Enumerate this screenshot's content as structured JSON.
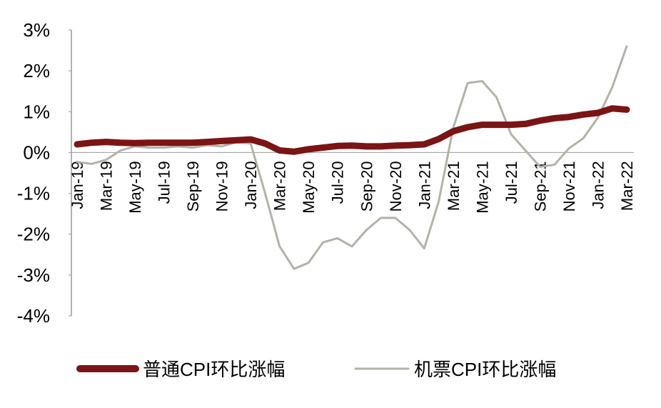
{
  "chart_data": {
    "type": "line",
    "categories": [
      "Jan-19",
      null,
      "Mar-19",
      null,
      "May-19",
      null,
      "Jul-19",
      null,
      "Sep-19",
      null,
      "Nov-19",
      null,
      "Jan-20",
      null,
      "Mar-20",
      null,
      "May-20",
      null,
      "Jul-20",
      null,
      "Sep-20",
      null,
      "Nov-20",
      null,
      "Jan-21",
      null,
      "Mar-21",
      null,
      "May-21",
      null,
      "Jul-21",
      null,
      "Sep-21",
      null,
      "Nov-21",
      null,
      "Jan-22",
      null,
      "Mar-22"
    ],
    "series": [
      {
        "name": "普通CPI环比涨幅",
        "color": "#7b1414",
        "values": [
          0.2,
          0.24,
          0.26,
          0.24,
          0.23,
          0.24,
          0.24,
          0.24,
          0.24,
          0.26,
          0.28,
          0.3,
          0.32,
          0.22,
          0.05,
          0.02,
          0.08,
          0.12,
          0.16,
          0.17,
          0.15,
          0.15,
          0.17,
          0.18,
          0.2,
          0.33,
          0.52,
          0.62,
          0.68,
          0.68,
          0.68,
          0.7,
          0.78,
          0.84,
          0.87,
          0.93,
          0.97,
          1.08,
          1.05
        ]
      },
      {
        "name": "机票CPI环比涨幅",
        "color": "#b4b2a8",
        "values": [
          -0.23,
          -0.28,
          -0.18,
          0.05,
          0.15,
          0.12,
          0.12,
          0.15,
          0.12,
          0.18,
          0.15,
          0.25,
          0.22,
          -1.0,
          -2.3,
          -2.85,
          -2.7,
          -2.2,
          -2.1,
          -2.3,
          -1.9,
          -1.6,
          -1.6,
          -1.9,
          -2.35,
          -1.2,
          0.6,
          1.7,
          1.75,
          1.35,
          0.45,
          0.05,
          -0.35,
          -0.3,
          0.1,
          0.35,
          0.85,
          1.6,
          2.6
        ]
      }
    ],
    "ylim": [
      -4,
      3
    ],
    "yticks": [
      {
        "value": -4,
        "label": "-4%"
      },
      {
        "value": -3,
        "label": "-3%"
      },
      {
        "value": -2,
        "label": "-2%"
      },
      {
        "value": -1,
        "label": "-1%"
      },
      {
        "value": 0,
        "label": "0%"
      },
      {
        "value": 1,
        "label": "1%"
      },
      {
        "value": 2,
        "label": "2%"
      },
      {
        "value": 3,
        "label": "3%"
      }
    ]
  }
}
